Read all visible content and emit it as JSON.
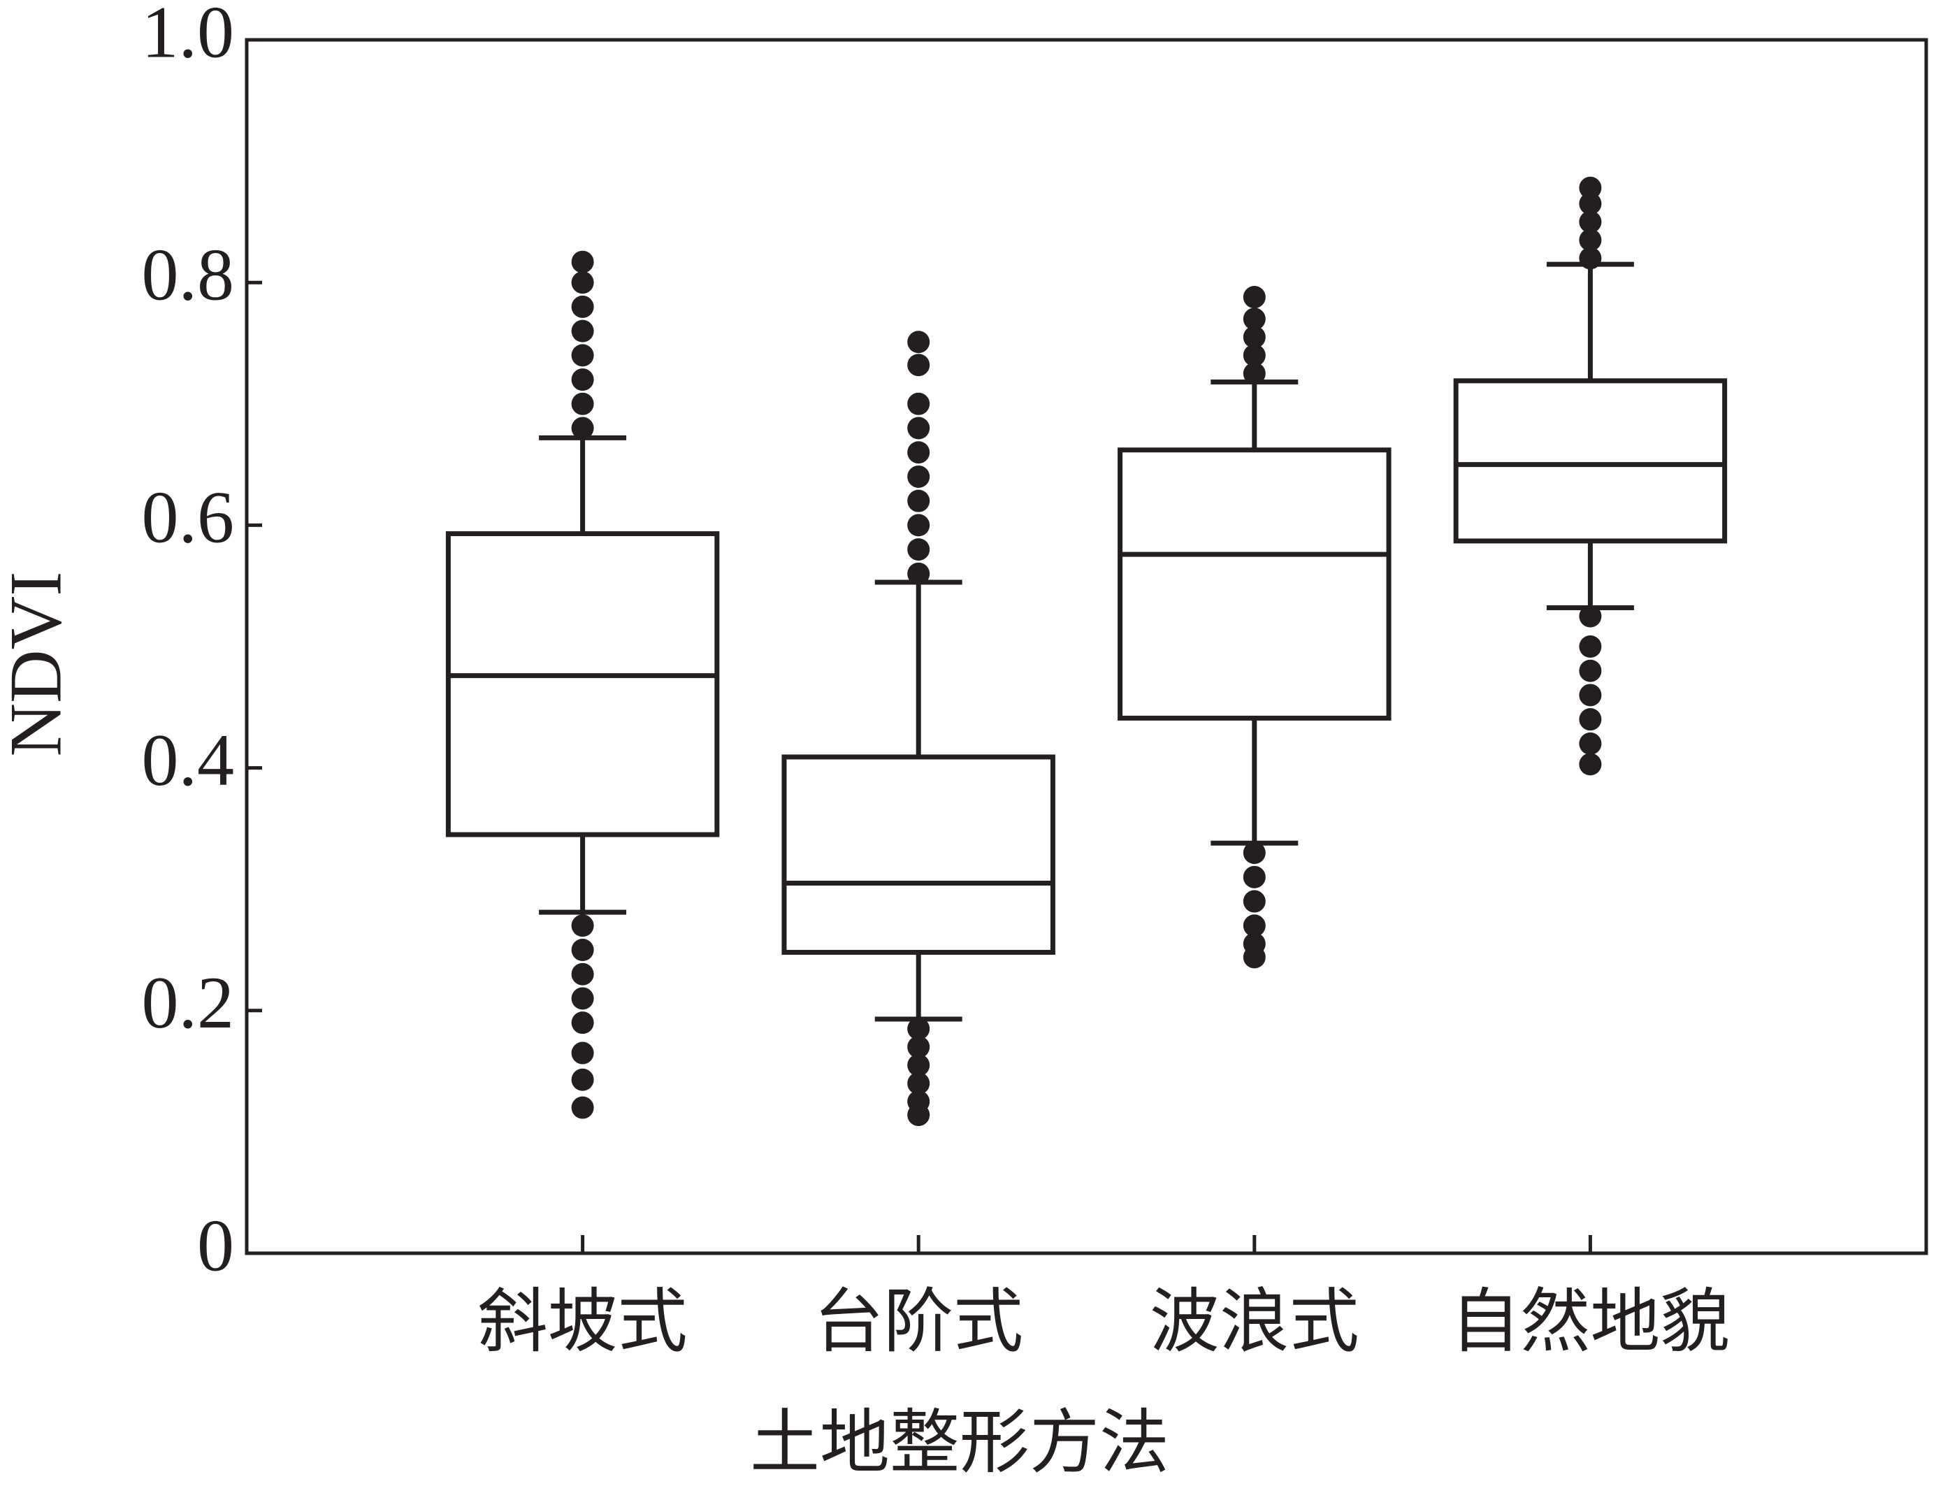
{
  "chart_data": {
    "type": "box",
    "xlabel": "土地整形方法",
    "ylabel": "NDVI",
    "categories": [
      "斜坡式",
      "台阶式",
      "波浪式",
      "自然地貌"
    ],
    "color": "#231f20",
    "boxes": [
      {
        "whisker_low": 0.281,
        "q1": 0.345,
        "median": 0.476,
        "q3": 0.593,
        "whisker_high": 0.672,
        "outliers": [
          0.68,
          0.7,
          0.72,
          0.74,
          0.76,
          0.78,
          0.8,
          0.817,
          0.27,
          0.25,
          0.23,
          0.21,
          0.19,
          0.165,
          0.143,
          0.12
        ]
      },
      {
        "whisker_low": 0.193,
        "q1": 0.248,
        "median": 0.305,
        "q3": 0.409,
        "whisker_high": 0.553,
        "outliers": [
          0.56,
          0.58,
          0.6,
          0.62,
          0.64,
          0.66,
          0.68,
          0.7,
          0.732,
          0.751,
          0.185,
          0.17,
          0.155,
          0.14,
          0.125,
          0.114
        ]
      },
      {
        "whisker_low": 0.338,
        "q1": 0.441,
        "median": 0.576,
        "q3": 0.662,
        "whisker_high": 0.718,
        "outliers": [
          0.725,
          0.74,
          0.755,
          0.77,
          0.788,
          0.33,
          0.31,
          0.29,
          0.27,
          0.255,
          0.244
        ]
      },
      {
        "whisker_low": 0.532,
        "q1": 0.587,
        "median": 0.65,
        "q3": 0.719,
        "whisker_high": 0.815,
        "outliers": [
          0.82,
          0.835,
          0.85,
          0.865,
          0.878,
          0.525,
          0.5,
          0.48,
          0.46,
          0.44,
          0.42,
          0.403
        ]
      }
    ],
    "ylim": [
      0,
      1
    ],
    "yticks": [
      0,
      0.2,
      0.4,
      0.6,
      0.8,
      {
        "value": 1,
        "label": "1.0"
      }
    ]
  }
}
